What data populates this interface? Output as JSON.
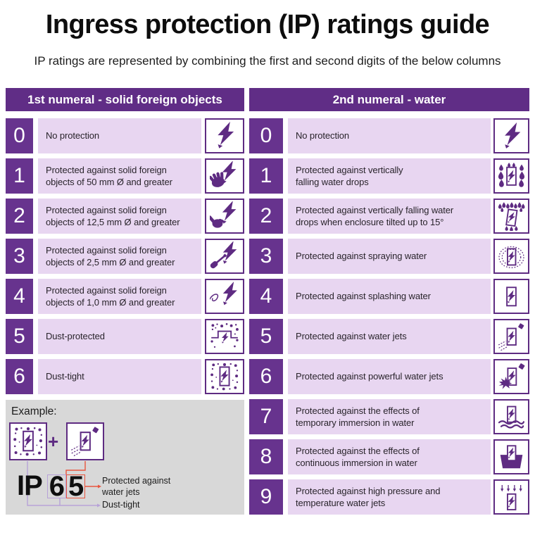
{
  "page": {
    "title": "Ingress protection (IP) ratings guide",
    "subtitle": "IP ratings are represented by combining the first and second digits of the below columns"
  },
  "colors": {
    "header_purple": "#602d86",
    "badge_purple": "#67338e",
    "row_background": "#e8d6f1",
    "icon_purple": "#5e2b82",
    "example_background": "#d8d8d8",
    "callout_red": "#e8553f",
    "callout_lavender": "#b7a2d8"
  },
  "left_column": {
    "header": "1st numeral - solid foreign objects",
    "rows": [
      {
        "digit": "0",
        "text": "No protection",
        "icon": "bolt-icon"
      },
      {
        "digit": "1",
        "text": "Protected against solid foreign\nobjects of 50 mm Ø and greater",
        "icon": "hand-bolt-icon"
      },
      {
        "digit": "2",
        "text": "Protected against solid foreign\nobjects of 12,5 mm Ø and greater",
        "icon": "finger-bolt-icon"
      },
      {
        "digit": "3",
        "text": "Protected against solid foreign\nobjects of 2,5 mm Ø and greater",
        "icon": "screwdriver-bolt-icon"
      },
      {
        "digit": "4",
        "text": "Protected against solid foreign\nobjects of 1,0 mm Ø and greater",
        "icon": "wire-bolt-icon"
      },
      {
        "digit": "5",
        "text": "Dust-protected",
        "icon": "dust-protected-icon"
      },
      {
        "digit": "6",
        "text": "Dust-tight",
        "icon": "dust-tight-icon"
      }
    ]
  },
  "right_column": {
    "header": "2nd numeral - water",
    "rows": [
      {
        "digit": "0",
        "text": "No protection",
        "icon": "bolt-icon"
      },
      {
        "digit": "1",
        "text": "Protected against vertically\nfalling water drops",
        "icon": "falling-drops-icon"
      },
      {
        "digit": "2",
        "text": "Protected against vertically falling water\ndrops when enclosure tilted up to 15°",
        "icon": "tilted-drops-icon"
      },
      {
        "digit": "3",
        "text": "Protected against spraying water",
        "icon": "spraying-water-icon"
      },
      {
        "digit": "4",
        "text": "Protected against splashing water",
        "icon": "splashing-water-icon"
      },
      {
        "digit": "5",
        "text": "Protected against water jets",
        "icon": "water-jet-icon"
      },
      {
        "digit": "6",
        "text": "Protected against powerful water jets",
        "icon": "powerful-jet-icon"
      },
      {
        "digit": "7",
        "text": "Protected against the effects of\ntemporary immersion in water",
        "icon": "temporary-immersion-icon"
      },
      {
        "digit": "8",
        "text": "Protected against the effects of\ncontinuous immersion in water",
        "icon": "continuous-immersion-icon"
      },
      {
        "digit": "9",
        "text": "Protected against high pressure and\ntemperature water jets",
        "icon": "high-pressure-jet-icon"
      }
    ]
  },
  "example": {
    "label": "Example:",
    "plus": "+",
    "code_prefix": "IP",
    "first_digit": "6",
    "second_digit": "5",
    "first_icon": "dust-tight-icon",
    "second_icon": "water-jet-icon",
    "callout_water_jets": "Protected against\nwater jets",
    "callout_dust_tight": "Dust-tight"
  }
}
